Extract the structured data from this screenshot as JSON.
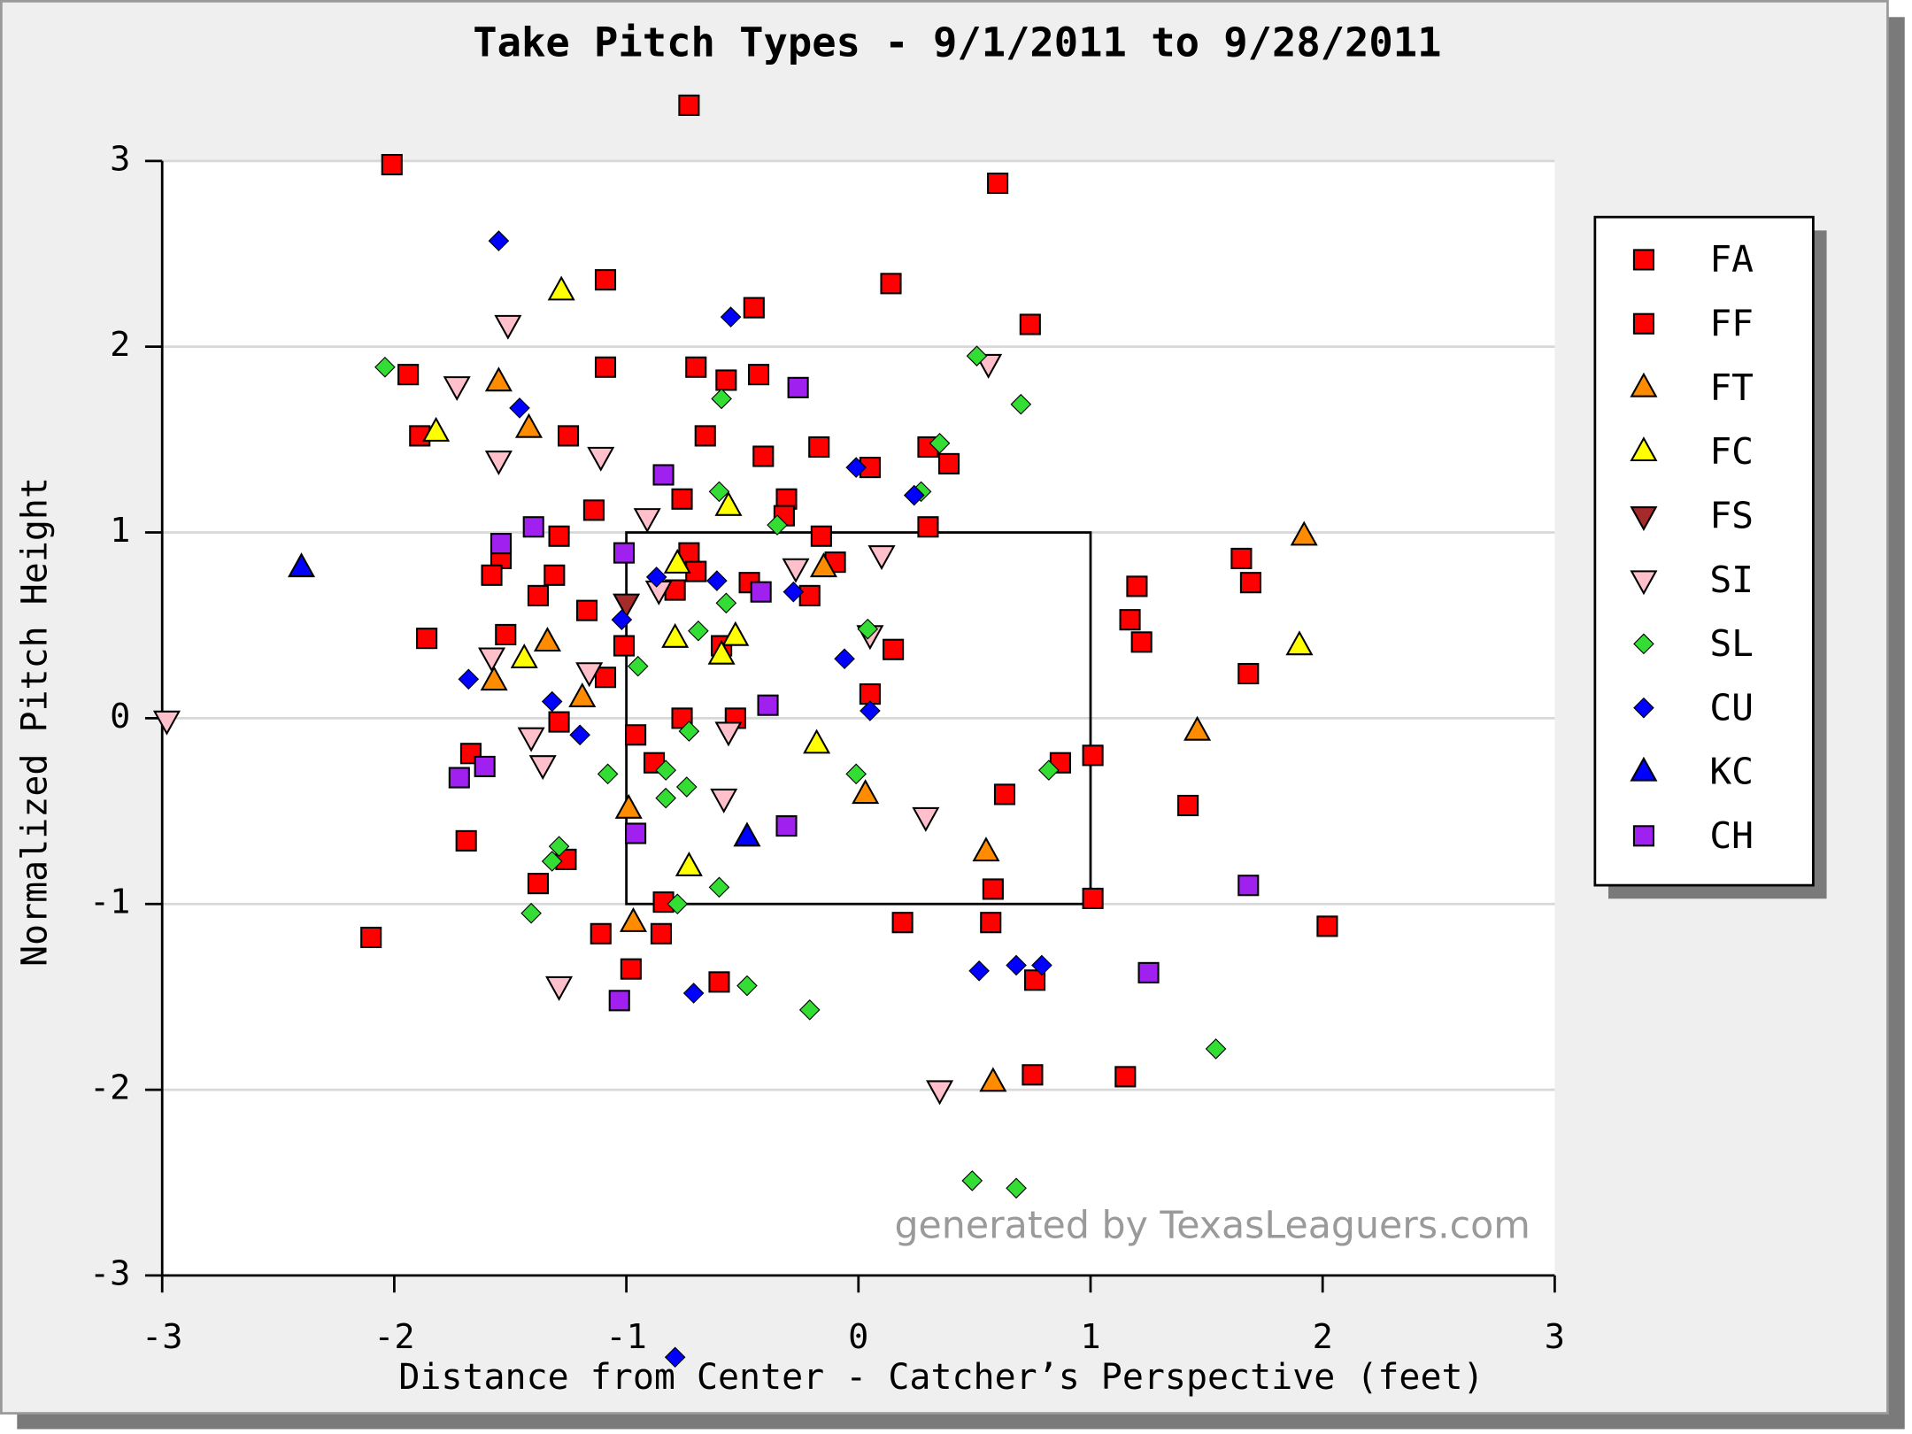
{
  "chart_data": {
    "type": "scatter",
    "title": "Take Pitch Types - 9/1/2011 to 9/28/2011",
    "x_label": "Distance from Center - Catcher’s Perspective (feet)",
    "y_label": "Normalized Pitch Height",
    "watermark": "generated by TexasLeaguers.com",
    "xlim": [
      -3,
      3
    ],
    "ylim": [
      -3,
      3
    ],
    "xticks": [
      -3,
      -2,
      -1,
      0,
      1,
      2,
      3
    ],
    "yticks": [
      -3,
      -2,
      -1,
      0,
      1,
      2,
      3
    ],
    "grid": true,
    "legend": "right",
    "strike_zone": {
      "x": [
        -1,
        1
      ],
      "y": [
        -1,
        1
      ]
    },
    "series": [
      {
        "name": "FA",
        "color": "#ff0000",
        "marker": "square",
        "x": [],
        "y": []
      },
      {
        "name": "FF",
        "color": "#ff0000",
        "marker": "square",
        "x": [
          -0.73,
          -2.01,
          0.6,
          -1.09,
          0.14,
          -0.45,
          0.74,
          -1.94,
          -1.09,
          -0.7,
          -0.57,
          -0.43,
          -1.89,
          -1.25,
          -0.66,
          -0.41,
          -0.17,
          0.05,
          0.3,
          0.39,
          -1.14,
          -0.76,
          -0.31,
          -0.32,
          -1.29,
          0.3,
          -0.16,
          -0.73,
          -1.54,
          -1.58,
          -1.31,
          -0.7,
          -0.1,
          -0.47,
          -1.38,
          -0.79,
          -0.21,
          1.2,
          1.65,
          1.69,
          -1.17,
          1.17,
          -1.09,
          -1.01,
          0.15,
          1.22,
          -1.86,
          -1.52,
          -0.59,
          1.68,
          0.05,
          -1.29,
          -0.76,
          -0.53,
          -0.96,
          -0.88,
          0.87,
          1.01,
          -1.67,
          0.63,
          1.42,
          -1.69,
          -1.26,
          -1.38,
          0.58,
          -0.84,
          1.01,
          0.57,
          0.19,
          2.02,
          -2.1,
          -1.11,
          -0.85,
          -0.98,
          -0.6,
          0.76,
          0.75,
          1.15
        ],
        "y": [
          3.3,
          2.98,
          2.88,
          2.36,
          2.34,
          2.21,
          2.12,
          1.85,
          1.89,
          1.89,
          1.82,
          1.85,
          1.52,
          1.52,
          1.52,
          1.41,
          1.46,
          1.35,
          1.46,
          1.37,
          1.12,
          1.18,
          1.18,
          1.09,
          0.98,
          1.03,
          0.98,
          0.89,
          0.86,
          0.77,
          0.77,
          0.79,
          0.84,
          0.73,
          0.66,
          0.69,
          0.66,
          0.71,
          0.86,
          0.73,
          0.58,
          0.53,
          0.22,
          0.39,
          0.37,
          0.41,
          0.43,
          0.45,
          0.39,
          0.24,
          0.13,
          -0.02,
          0,
          0,
          -0.09,
          -0.24,
          -0.24,
          -0.2,
          -0.19,
          -0.41,
          -0.47,
          -0.66,
          -0.76,
          -0.89,
          -0.92,
          -0.99,
          -0.97,
          -1.1,
          -1.1,
          -1.12,
          -1.18,
          -1.16,
          -1.16,
          -1.35,
          -1.42,
          -1.41,
          -1.92,
          -1.93
        ]
      },
      {
        "name": "FT",
        "color": "#ff8c00",
        "marker": "triangle-up",
        "x": [
          -1.55,
          -1.42,
          -1.34,
          -1.57,
          -1.19,
          -0.15,
          -0.99,
          0.03,
          -0.97,
          0.55,
          0.58,
          1.46,
          1.92
        ],
        "y": [
          1.81,
          1.56,
          0.41,
          0.2,
          0.11,
          0.81,
          -0.49,
          -0.41,
          -1.1,
          -0.72,
          -1.96,
          -0.07,
          0.98
        ]
      },
      {
        "name": "FC",
        "color": "#ffff00",
        "marker": "triangle-up",
        "x": [
          -1.28,
          -1.82,
          -0.56,
          -0.78,
          -0.79,
          -0.53,
          -0.59,
          -1.44,
          -0.18,
          -0.73,
          1.9
        ],
        "y": [
          2.3,
          1.54,
          1.14,
          0.83,
          0.43,
          0.44,
          0.34,
          0.32,
          -0.14,
          -0.8,
          0.39
        ]
      },
      {
        "name": "FS",
        "color": "#a52a2a",
        "marker": "triangle-down",
        "x": [
          -1.0
        ],
        "y": [
          0.62
        ]
      },
      {
        "name": "SI",
        "color": "#ffc0cb",
        "marker": "triangle-down",
        "x": [
          -1.51,
          -1.73,
          -1.55,
          -1.11,
          -0.91,
          -0.86,
          -0.27,
          0.1,
          0.05,
          -1.58,
          -1.16,
          -1.41,
          -1.36,
          -0.56,
          -0.58,
          0.29,
          -1.29,
          0.35,
          0.56,
          -2.98
        ],
        "y": [
          2.12,
          1.79,
          1.39,
          1.41,
          1.08,
          0.69,
          0.81,
          0.88,
          0.45,
          0.33,
          0.25,
          -0.1,
          -0.25,
          -0.07,
          -0.43,
          -0.53,
          -1.44,
          -2.0,
          1.91,
          -0.01
        ]
      },
      {
        "name": "SL",
        "color": "#33dd33",
        "marker": "diamond",
        "x": [
          -2.04,
          0.51,
          0.7,
          -0.59,
          0.35,
          0.27,
          -0.6,
          -0.35,
          -0.57,
          -0.69,
          -0.95,
          0.04,
          -1.08,
          -0.83,
          -0.73,
          -0.83,
          -0.74,
          -0.01,
          0.82,
          -1.29,
          -1.32,
          -1.41,
          -0.78,
          -0.6,
          -0.48,
          -0.21,
          1.54,
          0.49,
          0.68
        ],
        "y": [
          1.89,
          1.95,
          1.69,
          1.72,
          1.48,
          1.22,
          1.22,
          1.04,
          0.62,
          0.47,
          0.28,
          0.48,
          -0.3,
          -0.28,
          -0.07,
          -0.43,
          -0.37,
          -0.3,
          -0.28,
          -0.69,
          -0.77,
          -1.05,
          -1.0,
          -0.91,
          -1.44,
          -1.57,
          -1.78,
          -2.49,
          -2.53
        ]
      },
      {
        "name": "CU",
        "color": "#0000ff",
        "marker": "diamond",
        "x": [
          -1.55,
          -0.55,
          -1.46,
          -0.01,
          0.24,
          -0.61,
          -0.87,
          -0.28,
          -0.06,
          0.05,
          -1.68,
          -1.32,
          -1.2,
          -1.02,
          0.52,
          0.68,
          0.79,
          -0.71,
          -0.79
        ],
        "y": [
          2.57,
          2.16,
          1.67,
          1.35,
          1.2,
          0.74,
          0.76,
          0.68,
          0.32,
          0.04,
          0.21,
          0.09,
          -0.09,
          0.53,
          -1.36,
          -1.33,
          -1.33,
          -1.48,
          -3.44
        ]
      },
      {
        "name": "KC",
        "color": "#0000ff",
        "marker": "triangle-up",
        "x": [
          -2.4,
          -0.48
        ],
        "y": [
          0.81,
          -0.64
        ]
      },
      {
        "name": "CH",
        "color": "#a020f0",
        "marker": "square",
        "x": [
          -0.26,
          -0.84,
          -1.4,
          -1.54,
          -1.01,
          -0.42,
          -0.39,
          -1.61,
          -1.72,
          -0.96,
          -0.31,
          1.68,
          1.25,
          -1.03
        ],
        "y": [
          1.78,
          1.31,
          1.03,
          0.94,
          0.89,
          0.68,
          0.07,
          -0.26,
          -0.32,
          -0.62,
          -0.58,
          -0.9,
          -1.37,
          -1.52
        ]
      }
    ]
  }
}
